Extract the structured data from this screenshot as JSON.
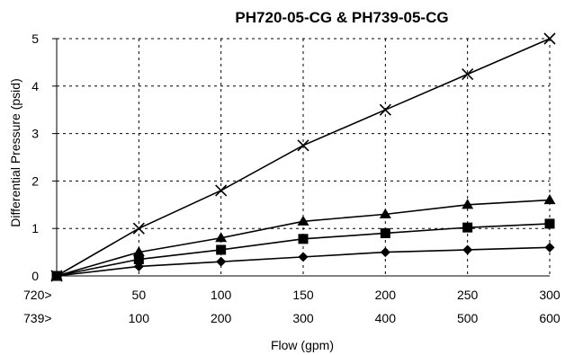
{
  "chart_data": {
    "type": "line",
    "title": "PH720-05-CG & PH739-05-CG",
    "xlabel": "Flow (gpm)",
    "ylabel": "Differential Pressure (psid)",
    "ylim": [
      0,
      5
    ],
    "yticks": [
      0,
      1,
      2,
      3,
      4,
      5
    ],
    "x": [
      0,
      50,
      100,
      150,
      200,
      250,
      300
    ],
    "x_tick_rows": [
      {
        "prefix": "720>",
        "labels": [
          "50",
          "100",
          "150",
          "200",
          "250",
          "300"
        ]
      },
      {
        "prefix": "739>",
        "labels": [
          "100",
          "200",
          "300",
          "400",
          "500",
          "600"
        ]
      }
    ],
    "grid": true,
    "series": [
      {
        "marker": "diamond",
        "values": [
          0,
          0.2,
          0.3,
          0.4,
          0.5,
          0.55,
          0.6
        ]
      },
      {
        "marker": "square",
        "values": [
          0,
          0.35,
          0.55,
          0.78,
          0.9,
          1.02,
          1.1
        ]
      },
      {
        "marker": "triangle",
        "values": [
          0,
          0.5,
          0.8,
          1.15,
          1.3,
          1.5,
          1.6
        ]
      },
      {
        "marker": "x",
        "values": [
          0,
          1.0,
          1.8,
          2.75,
          3.5,
          4.25,
          5.0
        ]
      }
    ],
    "line_color": "#000000"
  }
}
